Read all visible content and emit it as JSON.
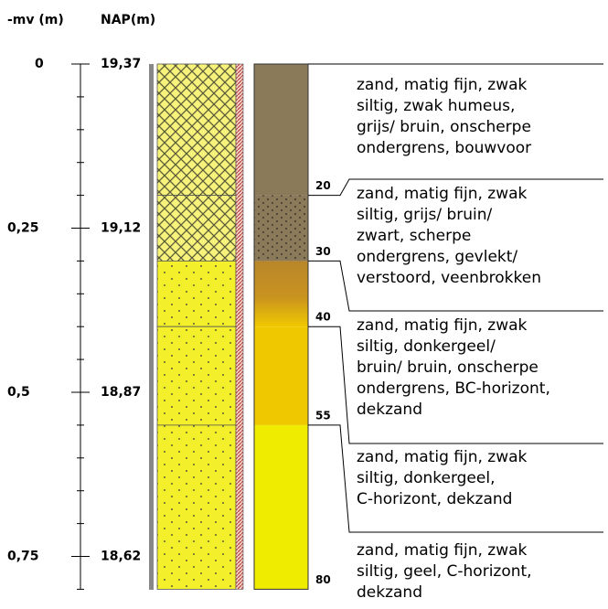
{
  "header": {
    "depth_label": "-mv (m)",
    "nap_label": "NAP(m)"
  },
  "depth_ticks": [
    {
      "value": 0,
      "label": "0"
    },
    {
      "value": 0.25,
      "label": "0,25"
    },
    {
      "value": 0.5,
      "label": "0,5"
    },
    {
      "value": 0.75,
      "label": "0,75"
    }
  ],
  "nap_labels": [
    "19,37",
    "19,12",
    "18,87",
    "18,62"
  ],
  "boundaries": [
    20,
    30,
    40,
    55,
    80
  ],
  "layers": [
    {
      "lines": [
        "zand, matig fijn, zwak",
        "siltig, zwak humeus,",
        "grijs/ bruin, onscherpe",
        "ondergrens, bouwvoor"
      ]
    },
    {
      "lines": [
        "zand, matig fijn, zwak",
        "siltig, grijs/ bruin/",
        "zwart, scherpe",
        "ondergrens, gevlekt/",
        "verstoord, veenbrokken"
      ]
    },
    {
      "lines": [
        "zand, matig fijn, zwak",
        "siltig, donkergeel/",
        "bruin/ bruin, onscherpe",
        "ondergrens, BC-horizont,",
        "dekzand"
      ]
    },
    {
      "lines": [
        "zand, matig fijn, zwak",
        "siltig, donkergeel,",
        "C-horizont, dekzand"
      ]
    },
    {
      "lines": [
        "zand, matig fijn, zwak",
        "siltig, geel, C-horizont,",
        "dekzand"
      ]
    }
  ]
}
